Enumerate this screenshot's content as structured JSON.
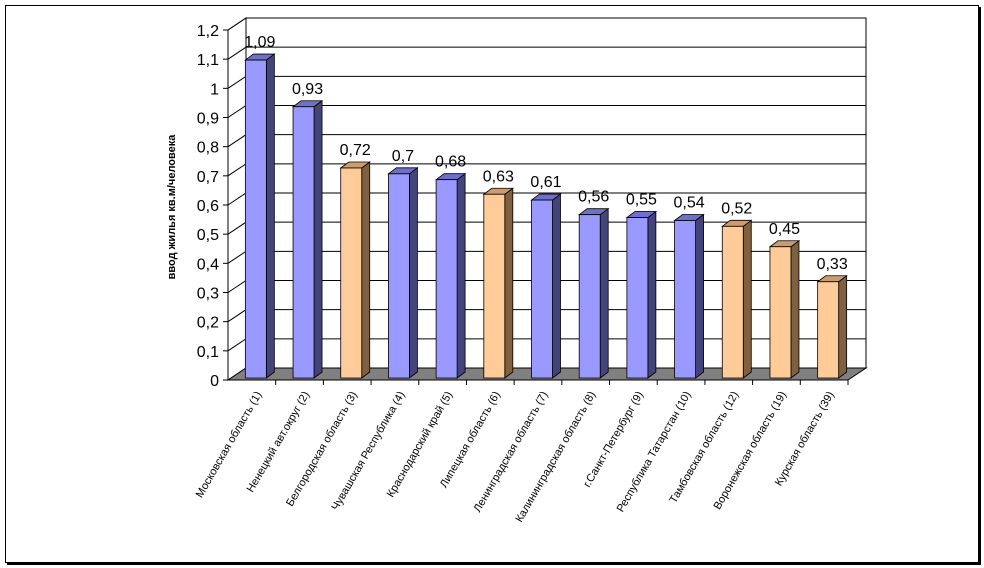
{
  "chart_data": {
    "type": "bar",
    "title": "",
    "xlabel": "",
    "ylabel": "ввод жилья кв.м/человека",
    "ylim": [
      0,
      1.2
    ],
    "yticks": [
      "0",
      "0,1",
      "0,2",
      "0,3",
      "0,4",
      "0,5",
      "0,6",
      "0,7",
      "0,8",
      "0,9",
      "1",
      "1,1",
      "1,2"
    ],
    "grid": true,
    "categories": [
      "Московская область (1)",
      "Ненецкий авт.округ (2)",
      "Белгородская область (3)",
      "Чувашская Республика (4)",
      "Краснодарский край (5)",
      "Липецкая область (6)",
      "Ленинградская область (7)",
      "Калининградская область (8)",
      "г.Санкт-Петербург (9)",
      "Республика Татарстан (10)",
      "Тамбовская область (12)",
      "Воронежская область (19)",
      "Курская область (39)"
    ],
    "values": [
      1.09,
      0.93,
      0.72,
      0.7,
      0.68,
      0.63,
      0.61,
      0.56,
      0.55,
      0.54,
      0.52,
      0.45,
      0.33
    ],
    "value_labels": [
      "1,09",
      "0,93",
      "0,72",
      "0,7",
      "0,68",
      "0,63",
      "0,61",
      "0,56",
      "0,55",
      "0,54",
      "0,52",
      "0,45",
      "0,33"
    ],
    "bar_groups": [
      "blue",
      "blue",
      "orange",
      "blue",
      "blue",
      "orange",
      "blue",
      "blue",
      "blue",
      "blue",
      "orange",
      "orange",
      "orange"
    ],
    "colors": {
      "blue_front": "#9999ff",
      "blue_side": "#44447a",
      "blue_top": "#6f6fcc",
      "orange_front": "#ffcc99",
      "orange_side": "#7f6040",
      "orange_top": "#cc9c70",
      "floor": "#808080",
      "grid": "#000000"
    }
  }
}
